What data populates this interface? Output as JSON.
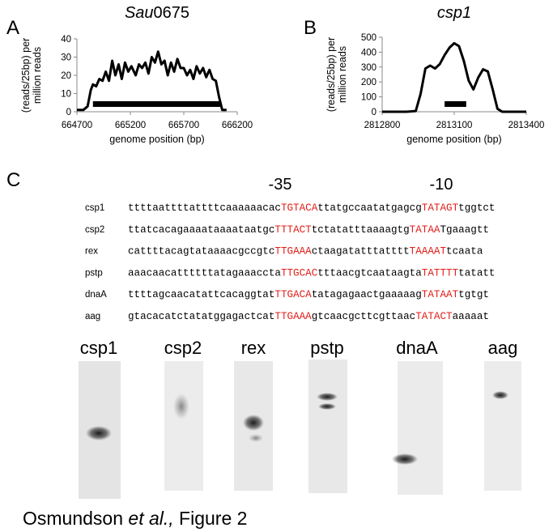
{
  "chart_data": [
    {
      "type": "line",
      "panel": "A",
      "title": [
        "Sau",
        "0675"
      ],
      "ylabel": [
        "(reads/25bp) per",
        "million reads"
      ],
      "xlabel": "genome position (bp)",
      "x": [
        664700,
        664760,
        664800,
        664830,
        664850,
        664880,
        664910,
        664940,
        664970,
        665000,
        665030,
        665060,
        665090,
        665120,
        665150,
        665180,
        665210,
        665250,
        665280,
        665310,
        665340,
        665370,
        665400,
        665430,
        665460,
        665490,
        665520,
        665550,
        665580,
        665610,
        665640,
        665670,
        665700,
        665730,
        665760,
        665790,
        665820,
        665850,
        665880,
        665910,
        665940,
        665970,
        666000,
        666030,
        666060,
        666100
      ],
      "values": [
        1,
        1,
        3,
        12,
        15,
        14,
        18,
        17,
        22,
        17,
        28,
        20,
        26,
        18,
        27,
        22,
        25,
        20,
        26,
        24,
        27,
        21,
        30,
        27,
        33,
        26,
        28,
        20,
        27,
        22,
        29,
        24,
        24,
        20,
        23,
        18,
        25,
        21,
        24,
        19,
        23,
        18,
        17,
        8,
        1,
        1
      ],
      "color": "#000000",
      "gene": [
        664850,
        666040
      ],
      "xlim": [
        664700,
        666200
      ],
      "xticks": [
        664700,
        665200,
        665700,
        666200
      ],
      "ylim": [
        0,
        40
      ],
      "yticks": [
        0,
        10,
        20,
        30,
        40
      ]
    },
    {
      "type": "line",
      "panel": "B",
      "title": [
        "csp1"
      ],
      "ylabel": [
        "(reads/25bp) per",
        "million reads"
      ],
      "xlabel": "genome position (bp)",
      "x": [
        2812800,
        2812900,
        2812940,
        2812960,
        2812980,
        2813000,
        2813020,
        2813040,
        2813060,
        2813080,
        2813100,
        2813120,
        2813140,
        2813160,
        2813180,
        2813200,
        2813220,
        2813240,
        2813260,
        2813280,
        2813300,
        2813400
      ],
      "values": [
        0,
        0,
        5,
        120,
        290,
        310,
        290,
        320,
        380,
        430,
        460,
        440,
        340,
        210,
        150,
        230,
        285,
        270,
        150,
        20,
        0,
        0
      ],
      "color": "#000000",
      "gene": [
        2813060,
        2813150
      ],
      "xlim": [
        2812800,
        2813400
      ],
      "xticks": [
        2812800,
        2813100,
        2813400
      ],
      "ylim": [
        0,
        500
      ],
      "yticks": [
        0,
        100,
        200,
        300,
        400,
        500
      ]
    }
  ],
  "panel_c": {
    "label": "C",
    "markers": [
      "-35",
      "-10"
    ],
    "rows": [
      {
        "name": "csp1",
        "parts": [
          "ttttaattttattttcaaaaaacac",
          "TGTACA",
          "ttatgccaatatgagcg",
          "TATAGT",
          "tggtct"
        ]
      },
      {
        "name": "csp2",
        "parts": [
          "ttatcacagaaaataaaataatgc",
          "TTTACT",
          "tctatatttaaaagtg",
          "TATAA",
          "Tgaaagtt"
        ]
      },
      {
        "name": "rex",
        "parts": [
          "cattttacagtataaaacgccgtc",
          "TTGAAA",
          "ctaagatatttatttt",
          "TAAAAT",
          "tcaata"
        ]
      },
      {
        "name": "pstp",
        "parts": [
          "aaacaacattttttatagaaaccta",
          "TTGCAC",
          "tttaacgtcaataagta",
          "TATTTT",
          "tatatt"
        ]
      },
      {
        "name": "dnaA",
        "parts": [
          "ttttagcaacatattcacaggtat",
          "TTGACA",
          "tatagagaactgaaaaag",
          "TATAAT",
          "tgtgt"
        ]
      },
      {
        "name": "aag",
        "parts": [
          "gtacacatctatatggagactcat",
          "TTGAAA",
          "gtcaacgcttcgttaac",
          "TATACT",
          "aaaaat"
        ]
      }
    ],
    "gels": [
      "csp1",
      "csp2",
      "rex",
      "pstp",
      "dnaA",
      "aag"
    ]
  },
  "caption": [
    "Osmundson ",
    "et al.,",
    " Figure 2"
  ]
}
